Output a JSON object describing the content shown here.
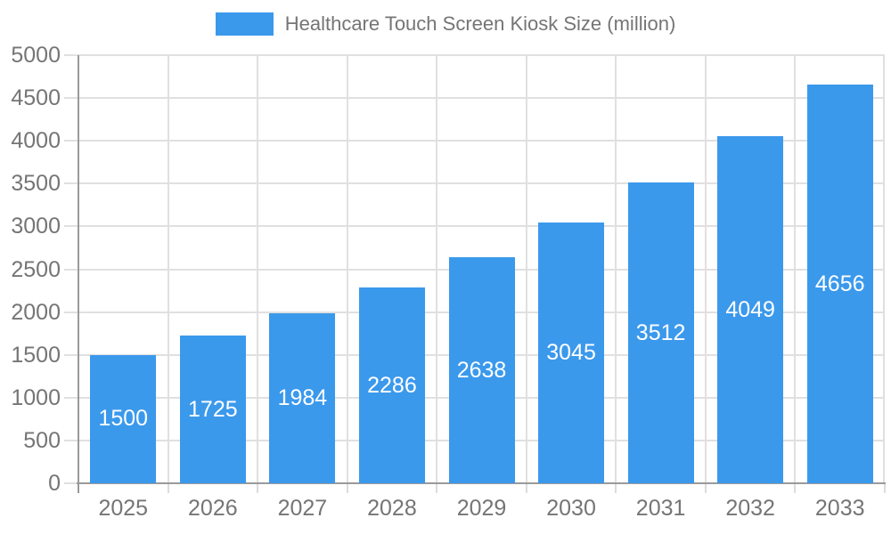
{
  "chart_data": {
    "type": "bar",
    "title": "Healthcare Touch Screen Kiosk Size (million)",
    "categories": [
      "2025",
      "2026",
      "2027",
      "2028",
      "2029",
      "2030",
      "2031",
      "2032",
      "2033"
    ],
    "values": [
      1500,
      1725,
      1984,
      2286,
      2638,
      3045,
      3512,
      4049,
      4656
    ],
    "ylim": [
      0,
      5000
    ],
    "yticks": [
      0,
      500,
      1000,
      1500,
      2000,
      2500,
      3000,
      3500,
      4000,
      4500,
      5000
    ],
    "grid": "horizontal-and-vertical",
    "legend_position": "top-center",
    "value_labels": "inside-bar-centered",
    "colors": {
      "bar": "#3b99ec",
      "bar_label": "#ffffff",
      "axis_text": "#757575",
      "grid_line": "#e0e0e0",
      "tick_line": "#dcdcdc",
      "axis_line": "#9a9a9a",
      "background": "#ffffff"
    }
  },
  "legend": {
    "label": "Healthcare Touch Screen Kiosk Size (million)"
  }
}
